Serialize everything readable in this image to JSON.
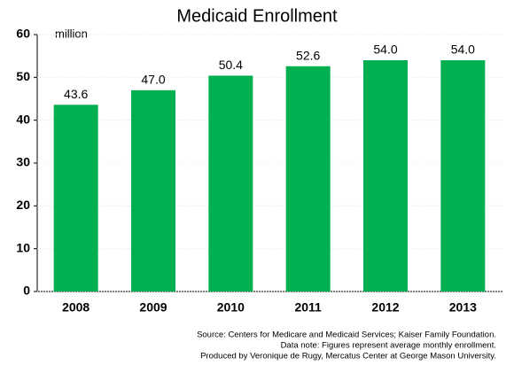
{
  "chart_data": {
    "type": "bar",
    "title": "Medicaid Enrollment",
    "y_unit": "million",
    "categories": [
      "2008",
      "2009",
      "2010",
      "2011",
      "2012",
      "2013"
    ],
    "values": [
      43.6,
      47.0,
      50.4,
      52.6,
      54.0,
      54.0
    ],
    "value_labels": [
      "43.6",
      "47.0",
      "50.4",
      "52.6",
      "54.0",
      "54.0"
    ],
    "color": "#00b050",
    "ylim": [
      0,
      60
    ],
    "yticks": [
      0,
      10,
      20,
      30,
      40,
      50,
      60
    ],
    "grid": true,
    "notes": [
      "Source: Centers for Medicare and Medicaid Services; Kaiser Family Foundation.",
      "Data note: Figures represent average monthly enrollment.",
      "Produced by Veronique de Rugy, Mercatus Center at George Mason University."
    ]
  }
}
